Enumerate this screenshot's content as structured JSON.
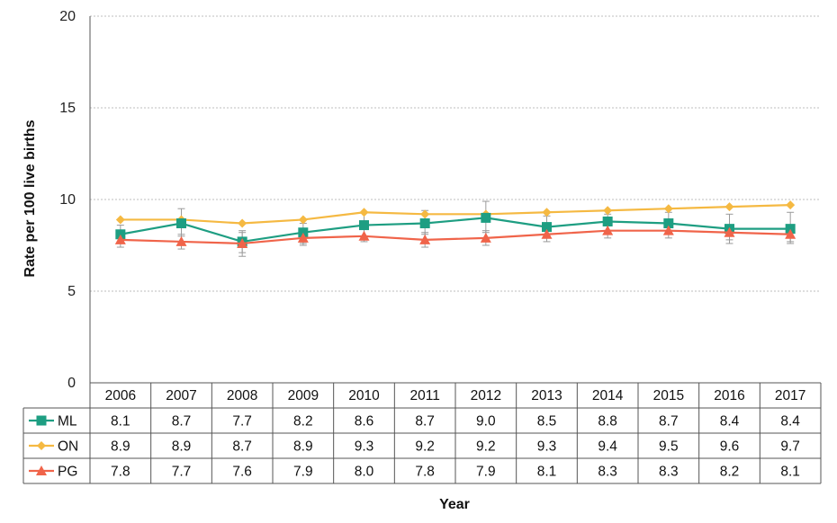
{
  "chart_data": {
    "type": "line",
    "title": "",
    "xlabel": "Year",
    "ylabel": "Rate per 100 live births",
    "ylim": [
      0,
      20
    ],
    "yticks": [
      0,
      5,
      10,
      15,
      20
    ],
    "grid": true,
    "legend": "data-table",
    "categories": [
      "2006",
      "2007",
      "2008",
      "2009",
      "2010",
      "2011",
      "2012",
      "2013",
      "2014",
      "2015",
      "2016",
      "2017"
    ],
    "series": [
      {
        "name": "ML",
        "color": "#1e9e82",
        "marker": "square",
        "values": [
          8.1,
          8.7,
          7.7,
          8.2,
          8.6,
          8.7,
          9.0,
          8.5,
          8.8,
          8.7,
          8.4,
          8.4
        ],
        "labels": [
          "8.1",
          "8.7",
          "7.7",
          "8.2",
          "8.6",
          "8.7",
          "9.0",
          "8.5",
          "8.8",
          "8.7",
          "8.4",
          "8.4"
        ],
        "error": [
          [
            7.7,
            8.6
          ],
          [
            8.0,
            9.5
          ],
          [
            7.1,
            8.3
          ],
          [
            7.6,
            8.7
          ],
          [
            8.0,
            9.3
          ],
          [
            8.1,
            9.4
          ],
          [
            8.2,
            9.9
          ],
          [
            7.9,
            9.1
          ],
          [
            8.3,
            9.2
          ],
          [
            8.1,
            9.3
          ],
          [
            7.6,
            9.2
          ],
          [
            7.6,
            9.3
          ]
        ]
      },
      {
        "name": "ON",
        "color": "#f5b942",
        "marker": "diamond",
        "values": [
          8.9,
          8.9,
          8.7,
          8.9,
          9.3,
          9.2,
          9.2,
          9.3,
          9.4,
          9.5,
          9.6,
          9.7
        ],
        "labels": [
          "8.9",
          "8.9",
          "8.7",
          "8.9",
          "9.3",
          "9.2",
          "9.2",
          "9.3",
          "9.4",
          "9.5",
          "9.6",
          "9.7"
        ]
      },
      {
        "name": "PG",
        "color": "#f0644a",
        "marker": "triangle",
        "values": [
          7.8,
          7.7,
          7.6,
          7.9,
          8.0,
          7.8,
          7.9,
          8.1,
          8.3,
          8.3,
          8.2,
          8.1
        ],
        "labels": [
          "7.8",
          "7.7",
          "7.6",
          "7.9",
          "8.0",
          "7.8",
          "7.9",
          "8.1",
          "8.3",
          "8.3",
          "8.2",
          "8.1"
        ],
        "error": [
          [
            7.4,
            8.2
          ],
          [
            7.3,
            8.1
          ],
          [
            6.9,
            8.2
          ],
          [
            7.5,
            8.3
          ],
          [
            7.7,
            8.4
          ],
          [
            7.4,
            8.2
          ],
          [
            7.5,
            8.3
          ],
          [
            7.7,
            8.5
          ],
          [
            7.9,
            8.6
          ],
          [
            7.9,
            8.6
          ],
          [
            7.8,
            8.5
          ],
          [
            7.7,
            8.4
          ]
        ]
      }
    ]
  }
}
